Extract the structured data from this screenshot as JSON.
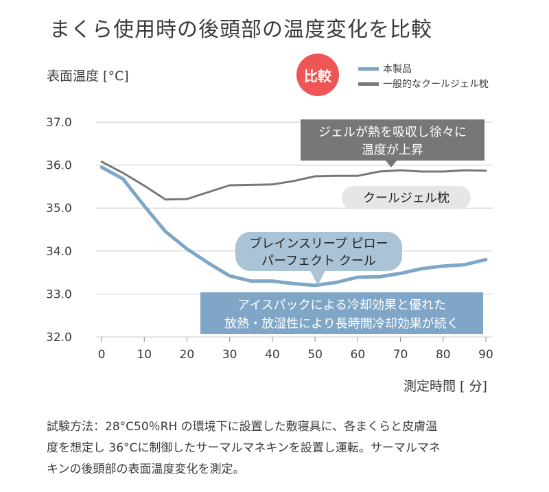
{
  "title": "まくら使用時の後頭部の温度変化を比較",
  "badge": "比較",
  "note_lines": [
    "試験方法：28°C50％RH の環境下に設置した敷寝具に、各まくらと皮膚温",
    "度を想定し 36°Cに制御したサーマルマネキンを設置し運転。サーマルマネ",
    "キンの後頭部の表面温度変化を測定。"
  ],
  "colors": {
    "product": "#7fa6c6",
    "gel": "#777777",
    "badge": "#ee5555",
    "gel_callout": "#777777",
    "gel_label_box": "#e6e6e6",
    "product_label_box": "#aac3d6",
    "product_callout": "#7fa6c6",
    "grid": "#c8c8c8"
  },
  "callouts": {
    "gel_effect": [
      "ジェルが熱を吸収し徐々に",
      "温度が上昇"
    ],
    "gel_label": [
      "クールジェル枕"
    ],
    "product_label": [
      "ブレインスリープ ピロー",
      "パーフェクト クール"
    ],
    "product_effect": [
      "アイスパックによる冷却効果と優れた",
      "放熱・放湿性により長時間冷却効果が続く"
    ]
  },
  "chart_data": {
    "type": "line",
    "ylabel": "表面温度 [°C]",
    "xlabel": "測定時間 [ 分]",
    "xlim": [
      0,
      90
    ],
    "ylim": [
      32.0,
      37.0
    ],
    "x_ticks": [
      "0",
      "10",
      "20",
      "30",
      "40",
      "50",
      "60",
      "70",
      "80",
      "90"
    ],
    "y_ticks": [
      "37.0",
      "36.0",
      "35.0",
      "34.0",
      "33.0",
      "32.0"
    ],
    "grid": "horizontal",
    "legend_position": "top-right",
    "series": [
      {
        "name": "本製品",
        "x": [
          0,
          5,
          10,
          15,
          20,
          25,
          30,
          35,
          40,
          45,
          50,
          55,
          60,
          65,
          70,
          75,
          80,
          85,
          90
        ],
        "values": [
          35.95,
          35.68,
          35.05,
          34.45,
          34.05,
          33.72,
          33.42,
          33.3,
          33.3,
          33.24,
          33.2,
          33.27,
          33.39,
          33.4,
          33.48,
          33.59,
          33.65,
          33.68,
          33.8
        ]
      },
      {
        "name": "一般的なクールジェル枕",
        "x": [
          0,
          5,
          10,
          15,
          20,
          25,
          30,
          35,
          40,
          45,
          50,
          55,
          60,
          65,
          70,
          75,
          80,
          85,
          90
        ],
        "values": [
          36.08,
          35.82,
          35.52,
          35.2,
          35.21,
          35.37,
          35.53,
          35.54,
          35.55,
          35.63,
          35.74,
          35.75,
          35.75,
          35.85,
          35.88,
          35.85,
          35.85,
          35.88,
          35.87
        ]
      }
    ]
  }
}
